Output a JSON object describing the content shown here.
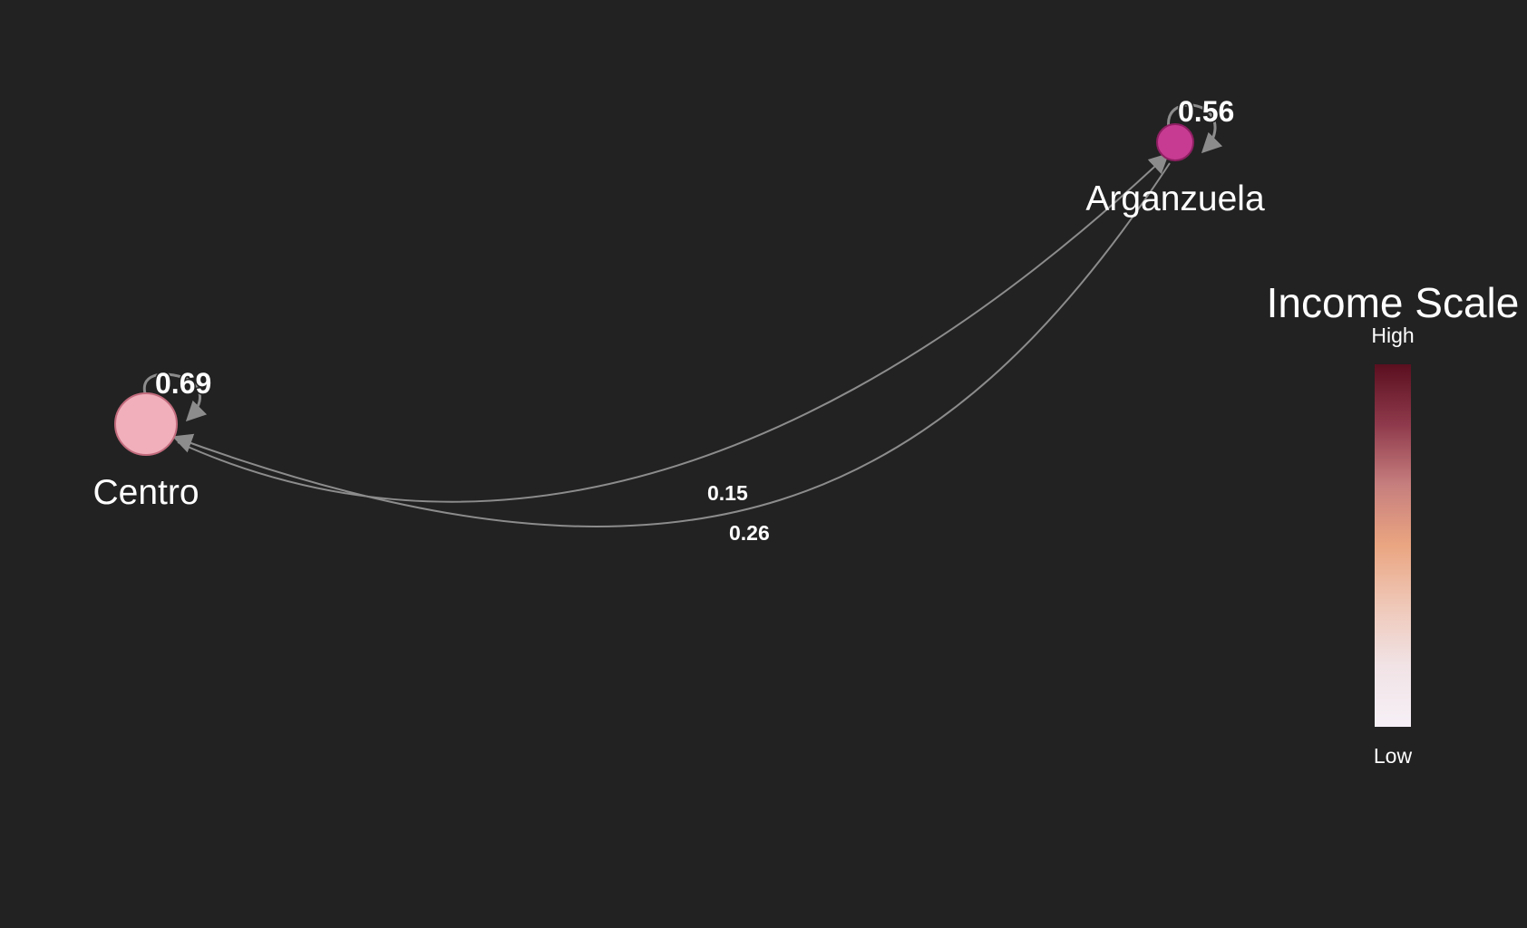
{
  "nodes": [
    {
      "id": "centro",
      "label": "Centro",
      "self_value": "0.69",
      "color": "#f0afbb",
      "stroke": "#c26b7d"
    },
    {
      "id": "arganzuela",
      "label": "Arganzuela",
      "self_value": "0.56",
      "color": "#c73b92",
      "stroke": "#8e1f62"
    }
  ],
  "edges": [
    {
      "from": "centro",
      "to": "arganzuela",
      "value": "0.15"
    },
    {
      "from": "arganzuela",
      "to": "centro",
      "value": "0.26"
    }
  ],
  "legend": {
    "title": "Income Scale",
    "high_label": "High",
    "low_label": "Low",
    "colors": [
      "#5a0f1f",
      "#8f3a4c",
      "#c77f7e",
      "#eaa581",
      "#efc8b8",
      "#f1e3e6",
      "#f6f0f6"
    ]
  },
  "colors": {
    "background": "#222222",
    "edge": "#8c8c8c",
    "text": "#ffffff"
  }
}
